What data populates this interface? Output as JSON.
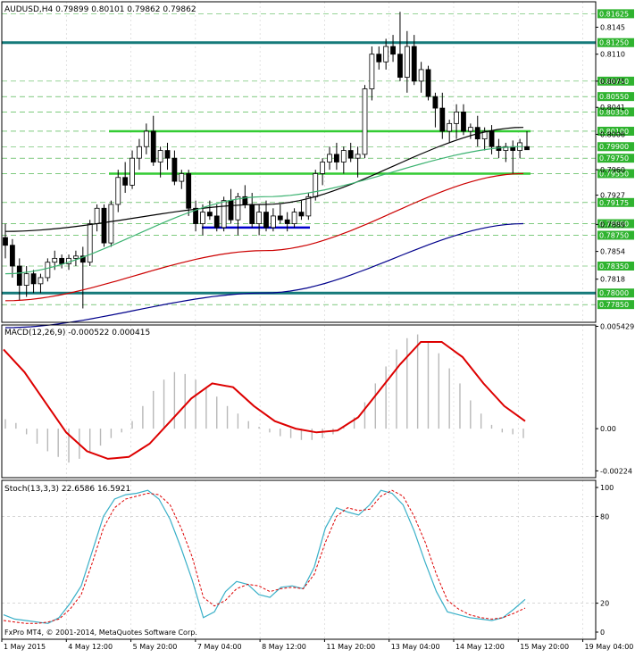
{
  "app": {
    "copyright": "FxPro MT4, © 2001-2014, MetaQuotes Software Corp."
  },
  "chart_data": [
    {
      "type": "candlestick",
      "title": "AUDUSD,H4  0.79899 0.80101 0.79862 0.79862",
      "price_labels": [
        "0.81625",
        "0.81250",
        "0.80750",
        "0.80550",
        "0.80350",
        "0.80100",
        "0.79900",
        "0.79750",
        "0.79550",
        "0.79175",
        "0.78900",
        "0.78750",
        "0.78350",
        "0.78000",
        "0.77850"
      ],
      "price_ticks": [
        "0.8145",
        "0.8110",
        "0.8075",
        "0.8041",
        "0.8006",
        "0.7960",
        "0.7927",
        "0.7889",
        "0.7854",
        "0.7818"
      ],
      "horizontal_levels": [
        0.8125,
        0.801,
        0.7955,
        0.78
      ],
      "candles": [
        [
          0.7872,
          0.789,
          0.7845,
          0.7862
        ],
        [
          0.7862,
          0.787,
          0.782,
          0.7835
        ],
        [
          0.7835,
          0.7845,
          0.779,
          0.781
        ],
        [
          0.781,
          0.7835,
          0.7795,
          0.7825
        ],
        [
          0.7825,
          0.783,
          0.78,
          0.7812
        ],
        [
          0.7812,
          0.7825,
          0.78,
          0.782
        ],
        [
          0.782,
          0.7845,
          0.7815,
          0.784
        ],
        [
          0.784,
          0.7855,
          0.783,
          0.7845
        ],
        [
          0.7845,
          0.785,
          0.7832,
          0.7838
        ],
        [
          0.7838,
          0.785,
          0.783,
          0.7845
        ],
        [
          0.7845,
          0.7855,
          0.7835,
          0.7848
        ],
        [
          0.7848,
          0.786,
          0.778,
          0.784
        ],
        [
          0.784,
          0.7895,
          0.7835,
          0.789
        ],
        [
          0.789,
          0.7915,
          0.788,
          0.791
        ],
        [
          0.791,
          0.7915,
          0.786,
          0.7865
        ],
        [
          0.7865,
          0.792,
          0.786,
          0.7915
        ],
        [
          0.7915,
          0.796,
          0.7905,
          0.795
        ],
        [
          0.795,
          0.797,
          0.793,
          0.794
        ],
        [
          0.794,
          0.7985,
          0.7935,
          0.7975
        ],
        [
          0.7975,
          0.8,
          0.796,
          0.799
        ],
        [
          0.799,
          0.802,
          0.798,
          0.801
        ],
        [
          0.801,
          0.803,
          0.7965,
          0.797
        ],
        [
          0.797,
          0.799,
          0.795,
          0.7985
        ],
        [
          0.7985,
          0.7995,
          0.796,
          0.7975
        ],
        [
          0.7975,
          0.7985,
          0.794,
          0.7945
        ],
        [
          0.7945,
          0.796,
          0.7935,
          0.7955
        ],
        [
          0.7955,
          0.796,
          0.79,
          0.791
        ],
        [
          0.791,
          0.792,
          0.788,
          0.789
        ],
        [
          0.789,
          0.7915,
          0.7875,
          0.7905
        ],
        [
          0.7905,
          0.792,
          0.7895,
          0.79
        ],
        [
          0.79,
          0.7915,
          0.788,
          0.7885
        ],
        [
          0.7885,
          0.7925,
          0.788,
          0.792
        ],
        [
          0.792,
          0.7935,
          0.789,
          0.7895
        ],
        [
          0.7895,
          0.793,
          0.7875,
          0.7925
        ],
        [
          0.7925,
          0.794,
          0.791,
          0.7915
        ],
        [
          0.7915,
          0.793,
          0.7885,
          0.789
        ],
        [
          0.789,
          0.7915,
          0.7875,
          0.7905
        ],
        [
          0.7905,
          0.792,
          0.788,
          0.7885
        ],
        [
          0.7885,
          0.791,
          0.788,
          0.79
        ],
        [
          0.79,
          0.7915,
          0.789,
          0.7895
        ],
        [
          0.7895,
          0.7905,
          0.788,
          0.789
        ],
        [
          0.789,
          0.791,
          0.7885,
          0.7905
        ],
        [
          0.7905,
          0.792,
          0.7895,
          0.79
        ],
        [
          0.79,
          0.793,
          0.7895,
          0.7925
        ],
        [
          0.7925,
          0.796,
          0.792,
          0.7955
        ],
        [
          0.7955,
          0.7975,
          0.794,
          0.797
        ],
        [
          0.797,
          0.799,
          0.796,
          0.798
        ],
        [
          0.798,
          0.7995,
          0.796,
          0.797
        ],
        [
          0.797,
          0.799,
          0.7955,
          0.7985
        ],
        [
          0.7985,
          0.7995,
          0.797,
          0.7975
        ],
        [
          0.7975,
          0.799,
          0.795,
          0.798
        ],
        [
          0.798,
          0.807,
          0.7975,
          0.8065
        ],
        [
          0.8065,
          0.812,
          0.805,
          0.811
        ],
        [
          0.811,
          0.812,
          0.809,
          0.81
        ],
        [
          0.81,
          0.813,
          0.809,
          0.812
        ],
        [
          0.812,
          0.8135,
          0.81,
          0.811
        ],
        [
          0.811,
          0.8165,
          0.8075,
          0.808
        ],
        [
          0.808,
          0.814,
          0.806,
          0.812
        ],
        [
          0.812,
          0.8135,
          0.807,
          0.8075
        ],
        [
          0.8075,
          0.81,
          0.806,
          0.809
        ],
        [
          0.809,
          0.8095,
          0.805,
          0.8055
        ],
        [
          0.8055,
          0.806,
          0.8015,
          0.804
        ],
        [
          0.804,
          0.806,
          0.8,
          0.801
        ],
        [
          0.801,
          0.8025,
          0.7995,
          0.802
        ],
        [
          0.802,
          0.8045,
          0.8,
          0.8035
        ],
        [
          0.8035,
          0.8045,
          0.8005,
          0.801
        ],
        [
          0.801,
          0.802,
          0.8,
          0.8015
        ],
        [
          0.8015,
          0.803,
          0.799,
          0.8
        ],
        [
          0.8,
          0.8015,
          0.7985,
          0.801
        ],
        [
          0.801,
          0.8018,
          0.798,
          0.799
        ],
        [
          0.799,
          0.8,
          0.7975,
          0.7985
        ],
        [
          0.7985,
          0.7995,
          0.797,
          0.799
        ],
        [
          0.799,
          0.7998,
          0.7955,
          0.7985
        ],
        [
          0.7985,
          0.8,
          0.7975,
          0.7995
        ],
        [
          0.799,
          0.801,
          0.7986,
          0.7986
        ]
      ],
      "moving_averages": [
        {
          "color": "#000000",
          "from": 0.788,
          "mid": 0.7915,
          "to": 0.8015
        },
        {
          "color": "#3cb371",
          "from": 0.7825,
          "mid": 0.7925,
          "to": 0.799
        },
        {
          "color": "#cc0000",
          "from": 0.779,
          "mid": 0.7855,
          "to": 0.7955
        },
        {
          "color": "#00008b",
          "from": 0.7755,
          "mid": 0.78,
          "to": 0.789
        }
      ],
      "support_segment_color": "#0000cc",
      "x_labels": [
        "1 May 2015",
        "4 May 12:00",
        "5 May 20:00",
        "7 May 04:00",
        "8 May 12:00",
        "11 May 20:00",
        "13 May 04:00",
        "14 May 12:00",
        "15 May 20:00",
        "19 May 04:00"
      ]
    },
    {
      "type": "histogram+line",
      "title": "MACD(12,26,9) -0.000522 0.000415",
      "ticks": [
        "0.005429",
        "0.00",
        "-0.00224"
      ],
      "histogram": [
        0.0005,
        0.0003,
        -0.0003,
        -0.0008,
        -0.0012,
        -0.0015,
        -0.0018,
        -0.0016,
        -0.0013,
        -0.0009,
        -0.0005,
        -0.0002,
        0.0004,
        0.0012,
        0.002,
        0.0026,
        0.003,
        0.0029,
        0.0026,
        0.0022,
        0.0017,
        0.0012,
        0.0008,
        0.0004,
        0.0001,
        -0.0002,
        -0.0004,
        -0.0005,
        -0.0006,
        -0.0006,
        -0.0005,
        -0.0003,
        0.0001,
        0.0006,
        0.0014,
        0.0024,
        0.0033,
        0.0042,
        0.0048,
        0.005,
        0.0046,
        0.004,
        0.0032,
        0.0024,
        0.0015,
        0.0008,
        0.0002,
        -0.0002,
        -0.0003,
        -0.0005
      ],
      "signal": [
        0.0042,
        0.003,
        0.0014,
        -0.0002,
        -0.0012,
        -0.0016,
        -0.0015,
        -0.0008,
        0.0004,
        0.0016,
        0.0024,
        0.0022,
        0.0012,
        0.0004,
        0.0,
        -0.0002,
        -0.0001,
        0.0006,
        0.002,
        0.0034,
        0.0046,
        0.0046,
        0.0038,
        0.0024,
        0.0012,
        0.0004
      ],
      "ylim": [
        -0.0026,
        0.0055
      ]
    },
    {
      "type": "line",
      "title": "Stoch(13,3,3) 22.6586 16.5921",
      "ticks": [
        "100",
        "80",
        "20",
        "0"
      ],
      "main": [
        12,
        9,
        8,
        7,
        6,
        10,
        20,
        32,
        56,
        80,
        92,
        95,
        96,
        98,
        92,
        78,
        58,
        36,
        10,
        14,
        28,
        35,
        33,
        26,
        24,
        31,
        32,
        30,
        45,
        72,
        86,
        83,
        81,
        88,
        98,
        96,
        88,
        70,
        48,
        28,
        14,
        12,
        10,
        9,
        8,
        10,
        16,
        22.6586
      ],
      "signal": [
        8,
        7,
        6,
        6,
        7,
        9,
        16,
        26,
        48,
        72,
        86,
        92,
        94,
        96,
        95,
        88,
        72,
        52,
        24,
        18,
        22,
        30,
        33,
        32,
        28,
        30,
        31,
        30,
        40,
        62,
        80,
        86,
        84,
        85,
        94,
        98,
        94,
        80,
        62,
        40,
        22,
        16,
        12,
        10,
        9,
        10,
        13,
        16.5921
      ],
      "ylim": [
        0,
        100
      ]
    }
  ]
}
